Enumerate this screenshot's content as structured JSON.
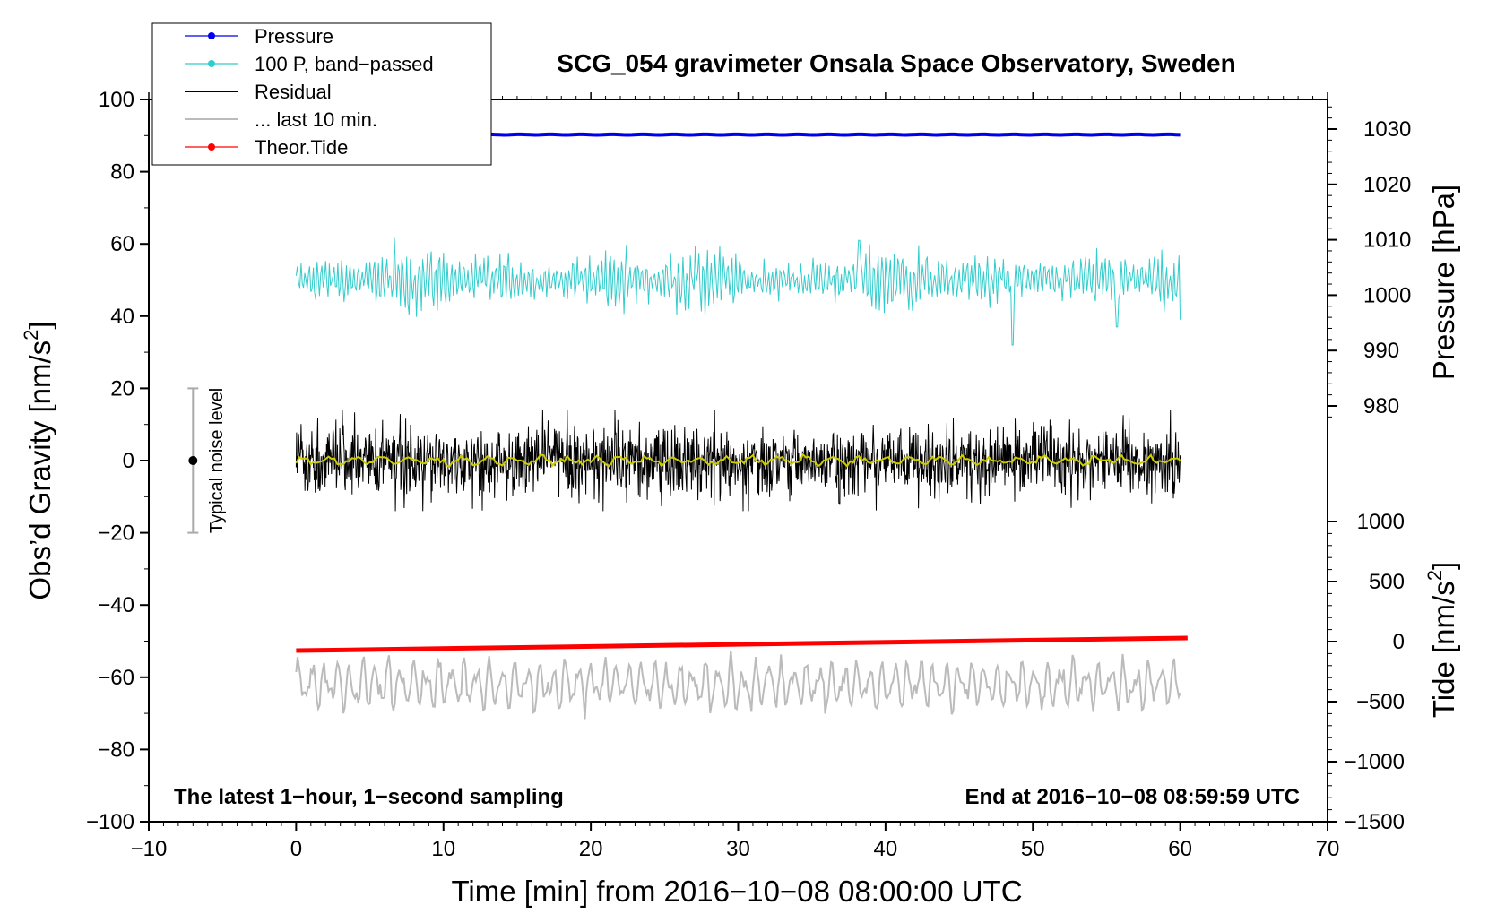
{
  "chart_data": {
    "type": "line",
    "title": "SCG_054 gravimeter Onsala Space Observatory, Sweden",
    "xlabel": "Time [min] from 2016−10−08 08:00:00 UTC",
    "ylabel_left": "Obs’d Gravity [nm/s²]",
    "ylabel_left_main": "Obs’d Gravity [nm/s",
    "ylabel_left_sup": "2",
    "ylabel_left_tail": "]",
    "ylabel_pressure": "Pressure [hPa]",
    "ylabel_tide": "Tide [nm/s²]",
    "ylabel_tide_main": "Tide [nm/s",
    "ylabel_tide_sup": "2",
    "ylabel_tide_tail": "]",
    "xlim": [
      -10,
      70
    ],
    "ylim_left": [
      -100,
      100
    ],
    "ylim_pressure": [
      975,
      1035
    ],
    "ylim_tide": [
      -1500,
      1000
    ],
    "x_ticks": [
      "−10",
      "0",
      "10",
      "20",
      "30",
      "40",
      "50",
      "60",
      "70"
    ],
    "x_tick_values": [
      -10,
      0,
      10,
      20,
      30,
      40,
      50,
      60,
      70
    ],
    "y_left_ticks": [
      "100",
      "80",
      "60",
      "40",
      "20",
      "0",
      "−20",
      "−40",
      "−60",
      "−80",
      "−100"
    ],
    "y_left_tick_values": [
      100,
      80,
      60,
      40,
      20,
      0,
      -20,
      -40,
      -60,
      -80,
      -100
    ],
    "pressure_ticks": [
      "1030",
      "1020",
      "1010",
      "1000",
      "990",
      "980"
    ],
    "pressure_tick_values": [
      1030,
      1020,
      1010,
      1000,
      990,
      980
    ],
    "tide_ticks": [
      "1000",
      "500",
      "0",
      "−500",
      "−1000",
      "−1500"
    ],
    "tide_tick_values": [
      1000,
      500,
      0,
      -500,
      -1000,
      -1500
    ],
    "legend": {
      "location": "top-left",
      "entries": [
        "Pressure",
        "100 P, band−passed",
        "Residual",
        "... last 10 min.",
        "Theor.Tide"
      ]
    },
    "annotations": {
      "bottom_left": "The latest 1−hour, 1−second sampling",
      "bottom_right": "End at 2016−10−08 08:59:59 UTC",
      "noise_label": "Typical noise level"
    },
    "noise_bar": {
      "x": -7,
      "center": 0,
      "low": -20,
      "high": 20
    },
    "series": [
      {
        "name": "Pressure",
        "axis": "pressure",
        "x_start": 0,
        "x_end": 60,
        "values_approx": [
          1029,
          1029,
          1029,
          1029,
          1029,
          1029,
          1029
        ],
        "color": "#0000ee"
      },
      {
        "name": "100 P, band−passed",
        "axis": "left",
        "x_start": 0,
        "x_end": 60,
        "center": 50,
        "amplitude_typical": 3,
        "amplitude_max": 18,
        "color": "#33cccc"
      },
      {
        "name": "Residual",
        "axis": "left",
        "x_start": 0,
        "x_end": 60,
        "center": 0,
        "amplitude_typical": 5,
        "amplitude_max": 14,
        "color": "#000000"
      },
      {
        "name": "Residual (smoothed)",
        "axis": "left",
        "x_start": 0,
        "x_end": 60,
        "center": 0,
        "amplitude_typical": 1,
        "color": "#cccc00"
      },
      {
        "name": "... last 10 min.",
        "axis": "left",
        "x_start": 0,
        "x_end": 60,
        "center": -62,
        "amplitude_typical": 5,
        "amplitude_max": 10,
        "color": "#bbbbbb"
      },
      {
        "name": "Theor.Tide",
        "axis": "tide",
        "x_start": 0,
        "x_end": 60.5,
        "values": [
          -75,
          30
        ],
        "color": "#ff0000"
      }
    ]
  },
  "colors": {
    "pressure": "#0000ee",
    "bandpassed": "#33cccc",
    "residual": "#000000",
    "smoothed": "#cccc00",
    "last10": "#bbbbbb",
    "tide": "#ff0000",
    "noise_bar": "#aaaaaa"
  }
}
